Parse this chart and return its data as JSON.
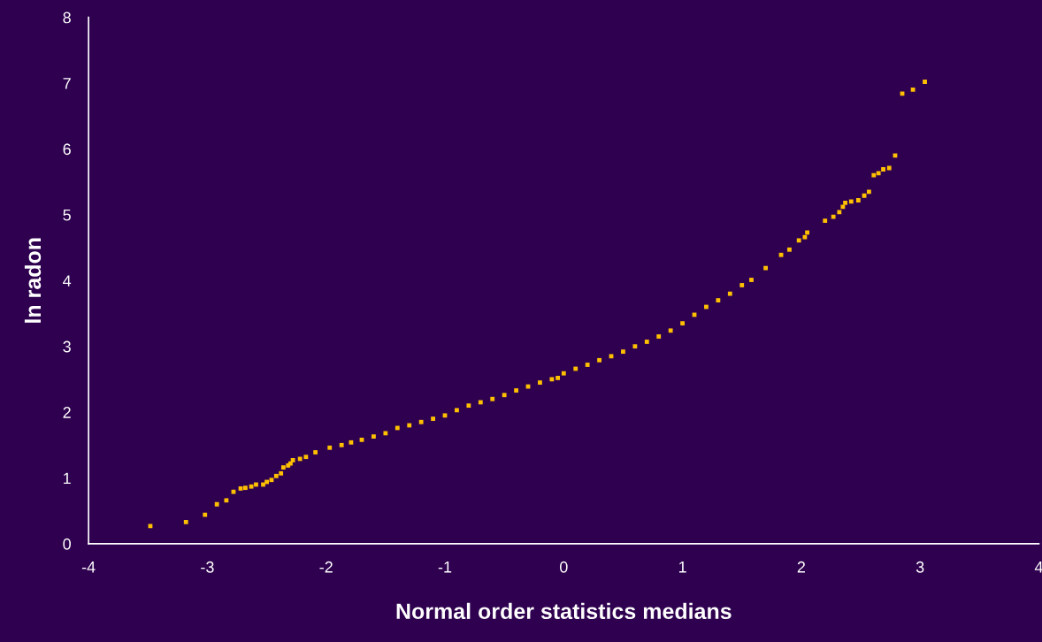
{
  "chart_data": {
    "type": "scatter",
    "xlabel": "Normal order statistics medians",
    "ylabel": "ln radon",
    "xlim": [
      -4,
      4
    ],
    "xticks": [
      -4,
      -3,
      -2,
      -1,
      0,
      1,
      2,
      3,
      4
    ],
    "ylim": [
      0,
      8
    ],
    "yticks": [
      0,
      1,
      2,
      3,
      4,
      5,
      6,
      7,
      8
    ],
    "grid": false,
    "marker": "square",
    "series": [
      {
        "color": "#ffc000",
        "x": [
          -3.48,
          -3.18,
          -3.02,
          -2.92,
          -2.84,
          -2.78,
          -2.72,
          -2.68,
          -2.63,
          -2.59,
          -2.53,
          -2.5,
          -2.46,
          -2.42,
          -2.38,
          -2.36,
          -2.32,
          -2.3,
          -2.28,
          -2.22,
          -2.17,
          -2.09,
          -1.97,
          -1.87,
          -1.79,
          -1.7,
          -1.6,
          -1.5,
          -1.4,
          -1.3,
          -1.2,
          -1.1,
          -1.0,
          -0.9,
          -0.8,
          -0.7,
          -0.6,
          -0.5,
          -0.4,
          -0.3,
          -0.2,
          -0.1,
          -0.05,
          0.0,
          0.1,
          0.2,
          0.3,
          0.4,
          0.5,
          0.6,
          0.7,
          0.8,
          0.9,
          1.0,
          1.1,
          1.2,
          1.3,
          1.4,
          1.5,
          1.58,
          1.7,
          1.83,
          1.9,
          1.98,
          2.03,
          2.05,
          2.2,
          2.27,
          2.32,
          2.35,
          2.37,
          2.42,
          2.48,
          2.53,
          2.57,
          2.61,
          2.65,
          2.69,
          2.74,
          2.79,
          2.85,
          2.94,
          3.04
        ],
        "values": [
          0.27,
          0.33,
          0.44,
          0.6,
          0.66,
          0.79,
          0.84,
          0.85,
          0.87,
          0.9,
          0.9,
          0.94,
          0.97,
          1.03,
          1.07,
          1.16,
          1.19,
          1.22,
          1.27,
          1.29,
          1.32,
          1.39,
          1.46,
          1.5,
          1.54,
          1.58,
          1.63,
          1.68,
          1.76,
          1.8,
          1.85,
          1.9,
          1.95,
          2.03,
          2.1,
          2.15,
          2.2,
          2.26,
          2.33,
          2.39,
          2.45,
          2.5,
          2.52,
          2.59,
          2.66,
          2.72,
          2.79,
          2.85,
          2.92,
          3.0,
          3.07,
          3.15,
          3.24,
          3.35,
          3.48,
          3.6,
          3.7,
          3.8,
          3.93,
          4.01,
          4.19,
          4.39,
          4.47,
          4.61,
          4.66,
          4.73,
          4.91,
          4.97,
          5.04,
          5.12,
          5.18,
          5.2,
          5.22,
          5.29,
          5.35,
          5.6,
          5.63,
          5.69,
          5.71,
          5.9,
          6.84,
          6.9,
          7.02
        ]
      }
    ]
  }
}
